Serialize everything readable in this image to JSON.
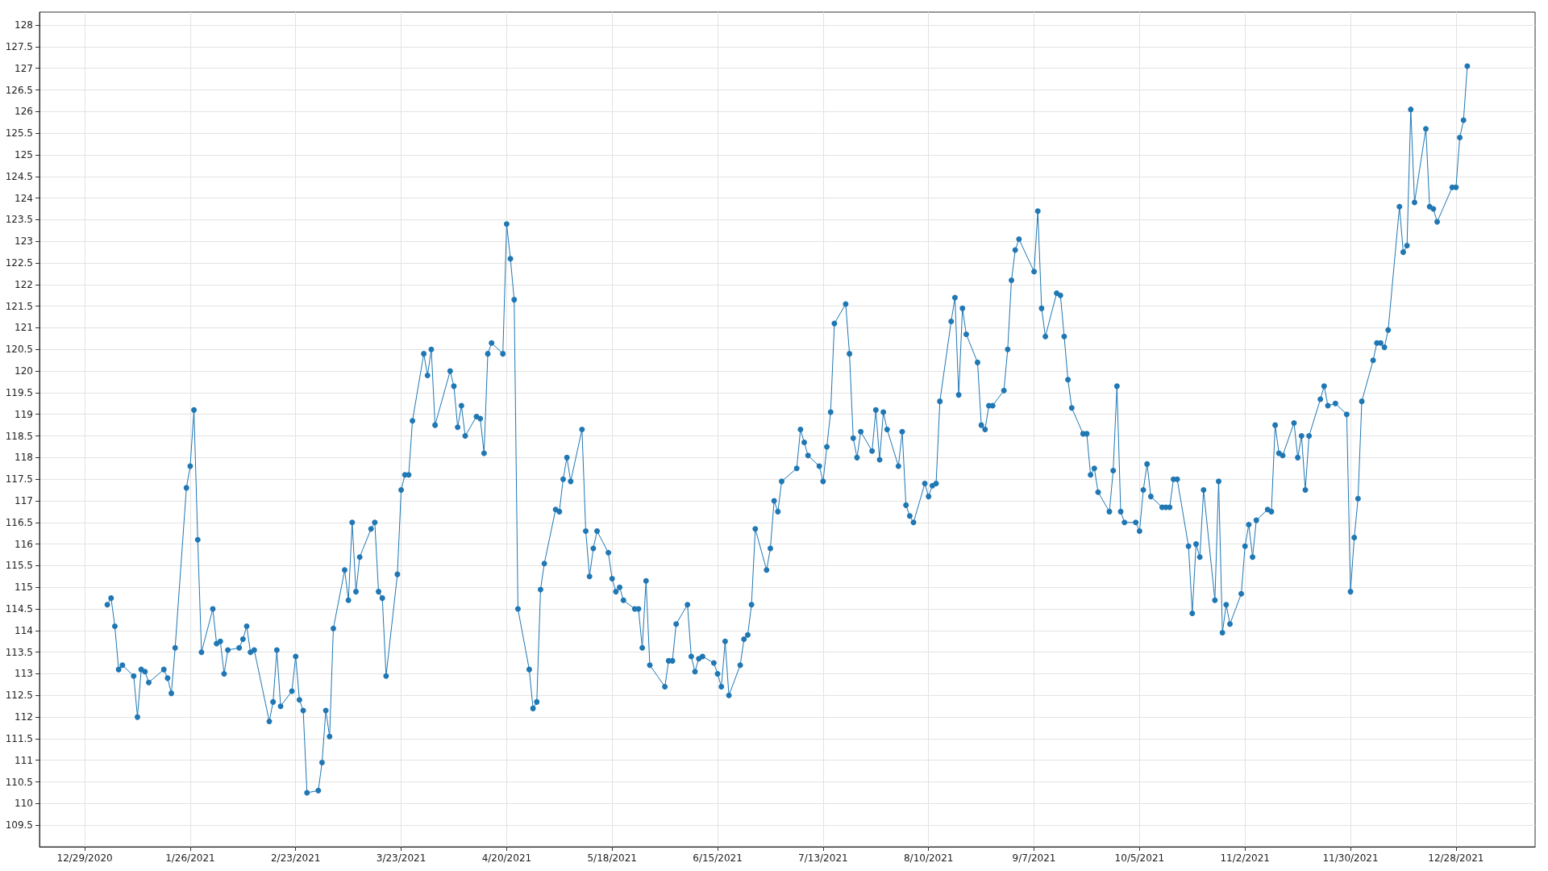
{
  "chart_data": {
    "type": "line",
    "marker": "circle",
    "line_style": "solid",
    "grid": true,
    "xlim": [
      "2020-12-17",
      "2022-01-18"
    ],
    "xticks": [
      {
        "value": "2020-12-29",
        "label": "12/29/2020"
      },
      {
        "value": "2021-01-26",
        "label": "1/26/2021"
      },
      {
        "value": "2021-02-23",
        "label": "2/23/2021"
      },
      {
        "value": "2021-03-23",
        "label": "3/23/2021"
      },
      {
        "value": "2021-04-20",
        "label": "4/20/2021"
      },
      {
        "value": "2021-05-18",
        "label": "5/18/2021"
      },
      {
        "value": "2021-06-15",
        "label": "6/15/2021"
      },
      {
        "value": "2021-07-13",
        "label": "7/13/2021"
      },
      {
        "value": "2021-08-10",
        "label": "8/10/2021"
      },
      {
        "value": "2021-09-07",
        "label": "9/7/2021"
      },
      {
        "value": "2021-10-05",
        "label": "10/5/2021"
      },
      {
        "value": "2021-11-02",
        "label": "11/2/2021"
      },
      {
        "value": "2021-11-30",
        "label": "11/30/2021"
      },
      {
        "value": "2021-12-28",
        "label": "12/28/2021"
      }
    ],
    "ylim": [
      109,
      128.3
    ],
    "yticks": [
      109.5,
      110,
      110.5,
      111,
      111.5,
      112,
      112.5,
      113,
      113.5,
      114,
      114.5,
      115,
      115.5,
      116,
      116.5,
      117,
      117.5,
      118,
      118.5,
      119,
      119.5,
      120,
      120.5,
      121,
      121.5,
      122,
      122.5,
      123,
      123.5,
      124,
      124.5,
      125,
      125.5,
      126,
      126.5,
      127,
      127.5,
      128
    ],
    "series": [
      {
        "color": "#1f77b4",
        "x": [
          "2021-01-04",
          "2021-01-05",
          "2021-01-06",
          "2021-01-07",
          "2021-01-08",
          "2021-01-11",
          "2021-01-12",
          "2021-01-13",
          "2021-01-14",
          "2021-01-15",
          "2021-01-19",
          "2021-01-20",
          "2021-01-21",
          "2021-01-22",
          "2021-01-25",
          "2021-01-26",
          "2021-01-27",
          "2021-01-28",
          "2021-01-29",
          "2021-02-01",
          "2021-02-02",
          "2021-02-03",
          "2021-02-04",
          "2021-02-05",
          "2021-02-08",
          "2021-02-09",
          "2021-02-10",
          "2021-02-11",
          "2021-02-12",
          "2021-02-16",
          "2021-02-17",
          "2021-02-18",
          "2021-02-19",
          "2021-02-22",
          "2021-02-23",
          "2021-02-24",
          "2021-02-25",
          "2021-02-26",
          "2021-03-01",
          "2021-03-02",
          "2021-03-03",
          "2021-03-04",
          "2021-03-05",
          "2021-03-08",
          "2021-03-09",
          "2021-03-10",
          "2021-03-11",
          "2021-03-12",
          "2021-03-15",
          "2021-03-16",
          "2021-03-17",
          "2021-03-18",
          "2021-03-19",
          "2021-03-22",
          "2021-03-23",
          "2021-03-24",
          "2021-03-25",
          "2021-03-26",
          "2021-03-29",
          "2021-03-30",
          "2021-03-31",
          "2021-04-01",
          "2021-04-05",
          "2021-04-06",
          "2021-04-07",
          "2021-04-08",
          "2021-04-09",
          "2021-04-12",
          "2021-04-13",
          "2021-04-14",
          "2021-04-15",
          "2021-04-16",
          "2021-04-19",
          "2021-04-20",
          "2021-04-21",
          "2021-04-22",
          "2021-04-23",
          "2021-04-26",
          "2021-04-27",
          "2021-04-28",
          "2021-04-29",
          "2021-04-30",
          "2021-05-03",
          "2021-05-04",
          "2021-05-05",
          "2021-05-06",
          "2021-05-07",
          "2021-05-10",
          "2021-05-11",
          "2021-05-12",
          "2021-05-13",
          "2021-05-14",
          "2021-05-17",
          "2021-05-18",
          "2021-05-19",
          "2021-05-20",
          "2021-05-21",
          "2021-05-24",
          "2021-05-25",
          "2021-05-26",
          "2021-05-27",
          "2021-05-28",
          "2021-06-01",
          "2021-06-02",
          "2021-06-03",
          "2021-06-04",
          "2021-06-07",
          "2021-06-08",
          "2021-06-09",
          "2021-06-10",
          "2021-06-11",
          "2021-06-14",
          "2021-06-15",
          "2021-06-16",
          "2021-06-17",
          "2021-06-18",
          "2021-06-21",
          "2021-06-22",
          "2021-06-23",
          "2021-06-24",
          "2021-06-25",
          "2021-06-28",
          "2021-06-29",
          "2021-06-30",
          "2021-07-01",
          "2021-07-02",
          "2021-07-06",
          "2021-07-07",
          "2021-07-08",
          "2021-07-09",
          "2021-07-12",
          "2021-07-13",
          "2021-07-14",
          "2021-07-15",
          "2021-07-16",
          "2021-07-19",
          "2021-07-20",
          "2021-07-21",
          "2021-07-22",
          "2021-07-23",
          "2021-07-26",
          "2021-07-27",
          "2021-07-28",
          "2021-07-29",
          "2021-07-30",
          "2021-08-02",
          "2021-08-03",
          "2021-08-04",
          "2021-08-05",
          "2021-08-06",
          "2021-08-09",
          "2021-08-10",
          "2021-08-11",
          "2021-08-12",
          "2021-08-13",
          "2021-08-16",
          "2021-08-17",
          "2021-08-18",
          "2021-08-19",
          "2021-08-20",
          "2021-08-23",
          "2021-08-24",
          "2021-08-25",
          "2021-08-26",
          "2021-08-27",
          "2021-08-30",
          "2021-08-31",
          "2021-09-01",
          "2021-09-02",
          "2021-09-03",
          "2021-09-07",
          "2021-09-08",
          "2021-09-09",
          "2021-09-10",
          "2021-09-13",
          "2021-09-14",
          "2021-09-15",
          "2021-09-16",
          "2021-09-17",
          "2021-09-20",
          "2021-09-21",
          "2021-09-22",
          "2021-09-23",
          "2021-09-24",
          "2021-09-27",
          "2021-09-28",
          "2021-09-29",
          "2021-09-30",
          "2021-10-01",
          "2021-10-04",
          "2021-10-05",
          "2021-10-06",
          "2021-10-07",
          "2021-10-08",
          "2021-10-11",
          "2021-10-12",
          "2021-10-13",
          "2021-10-14",
          "2021-10-15",
          "2021-10-18",
          "2021-10-19",
          "2021-10-20",
          "2021-10-21",
          "2021-10-22",
          "2021-10-25",
          "2021-10-26",
          "2021-10-27",
          "2021-10-28",
          "2021-10-29",
          "2021-11-01",
          "2021-11-02",
          "2021-11-03",
          "2021-11-04",
          "2021-11-05",
          "2021-11-08",
          "2021-11-09",
          "2021-11-10",
          "2021-11-11",
          "2021-11-12",
          "2021-11-15",
          "2021-11-16",
          "2021-11-17",
          "2021-11-18",
          "2021-11-19",
          "2021-11-22",
          "2021-11-23",
          "2021-11-24",
          "2021-11-26",
          "2021-11-29",
          "2021-11-30",
          "2021-12-01",
          "2021-12-02",
          "2021-12-03",
          "2021-12-06",
          "2021-12-07",
          "2021-12-08",
          "2021-12-09",
          "2021-12-10",
          "2021-12-13",
          "2021-12-14",
          "2021-12-15",
          "2021-12-16",
          "2021-12-17",
          "2021-12-20",
          "2021-12-21",
          "2021-12-22",
          "2021-12-23",
          "2021-12-27",
          "2021-12-28",
          "2021-12-29",
          "2021-12-30",
          "2021-12-31"
        ],
        "values": [
          114.6,
          114.75,
          114.1,
          113.1,
          113.2,
          112.95,
          112.0,
          113.1,
          113.05,
          112.8,
          113.1,
          112.9,
          112.55,
          113.6,
          117.3,
          117.8,
          119.1,
          116.1,
          113.5,
          114.5,
          113.7,
          113.75,
          113.0,
          113.55,
          113.6,
          113.8,
          114.1,
          113.5,
          113.55,
          111.9,
          112.35,
          113.55,
          112.25,
          112.6,
          113.4,
          112.4,
          112.15,
          110.25,
          110.3,
          110.95,
          112.15,
          111.55,
          114.05,
          115.4,
          114.7,
          116.5,
          114.9,
          115.7,
          116.35,
          116.5,
          114.9,
          114.75,
          112.95,
          115.3,
          117.25,
          117.6,
          117.6,
          118.85,
          120.4,
          119.9,
          120.5,
          118.75,
          120.0,
          119.65,
          118.7,
          119.2,
          118.5,
          118.95,
          118.9,
          118.1,
          120.4,
          120.65,
          120.4,
          123.4,
          122.6,
          121.65,
          114.5,
          113.1,
          112.2,
          112.35,
          114.95,
          115.55,
          116.8,
          116.75,
          117.5,
          118.0,
          117.45,
          118.65,
          116.3,
          115.25,
          115.9,
          116.3,
          115.8,
          115.2,
          114.9,
          115.0,
          114.7,
          114.5,
          114.5,
          113.6,
          115.15,
          113.2,
          112.7,
          113.3,
          113.3,
          114.15,
          114.6,
          113.4,
          113.05,
          113.35,
          113.4,
          113.25,
          113.0,
          112.7,
          113.75,
          112.5,
          113.2,
          113.8,
          113.9,
          114.6,
          116.35,
          115.4,
          115.9,
          117.0,
          116.75,
          117.45,
          117.75,
          118.65,
          118.35,
          118.05,
          117.8,
          117.45,
          118.25,
          119.05,
          121.1,
          121.55,
          120.4,
          118.45,
          118.0,
          118.6,
          118.15,
          119.1,
          117.95,
          119.05,
          118.65,
          117.8,
          118.6,
          116.9,
          116.65,
          116.5,
          117.4,
          117.1,
          117.35,
          117.4,
          119.3,
          121.15,
          121.7,
          119.45,
          121.45,
          120.85,
          120.2,
          118.75,
          118.65,
          119.2,
          119.2,
          119.55,
          120.5,
          122.1,
          122.8,
          123.05,
          122.3,
          123.7,
          121.45,
          120.8,
          121.8,
          121.75,
          120.8,
          119.8,
          119.15,
          118.55,
          118.55,
          117.6,
          117.75,
          117.2,
          116.75,
          117.7,
          119.65,
          116.75,
          116.5,
          116.5,
          116.3,
          117.25,
          117.85,
          117.1,
          116.85,
          116.85,
          116.85,
          117.5,
          117.5,
          115.95,
          114.4,
          116.0,
          115.7,
          117.25,
          114.7,
          117.45,
          113.95,
          114.6,
          114.15,
          114.85,
          115.95,
          116.45,
          115.7,
          116.55,
          116.8,
          116.75,
          118.75,
          118.1,
          118.05,
          118.8,
          118.0,
          118.5,
          117.25,
          118.5,
          119.35,
          119.65,
          119.2,
          119.25,
          119.0,
          114.9,
          116.15,
          117.05,
          119.3,
          120.25,
          120.65,
          120.65,
          120.55,
          120.95,
          123.8,
          122.75,
          122.9,
          126.05,
          123.9,
          125.6,
          123.8,
          123.75,
          123.45,
          124.25,
          124.25,
          125.4,
          125.8,
          127.05
        ]
      }
    ]
  }
}
